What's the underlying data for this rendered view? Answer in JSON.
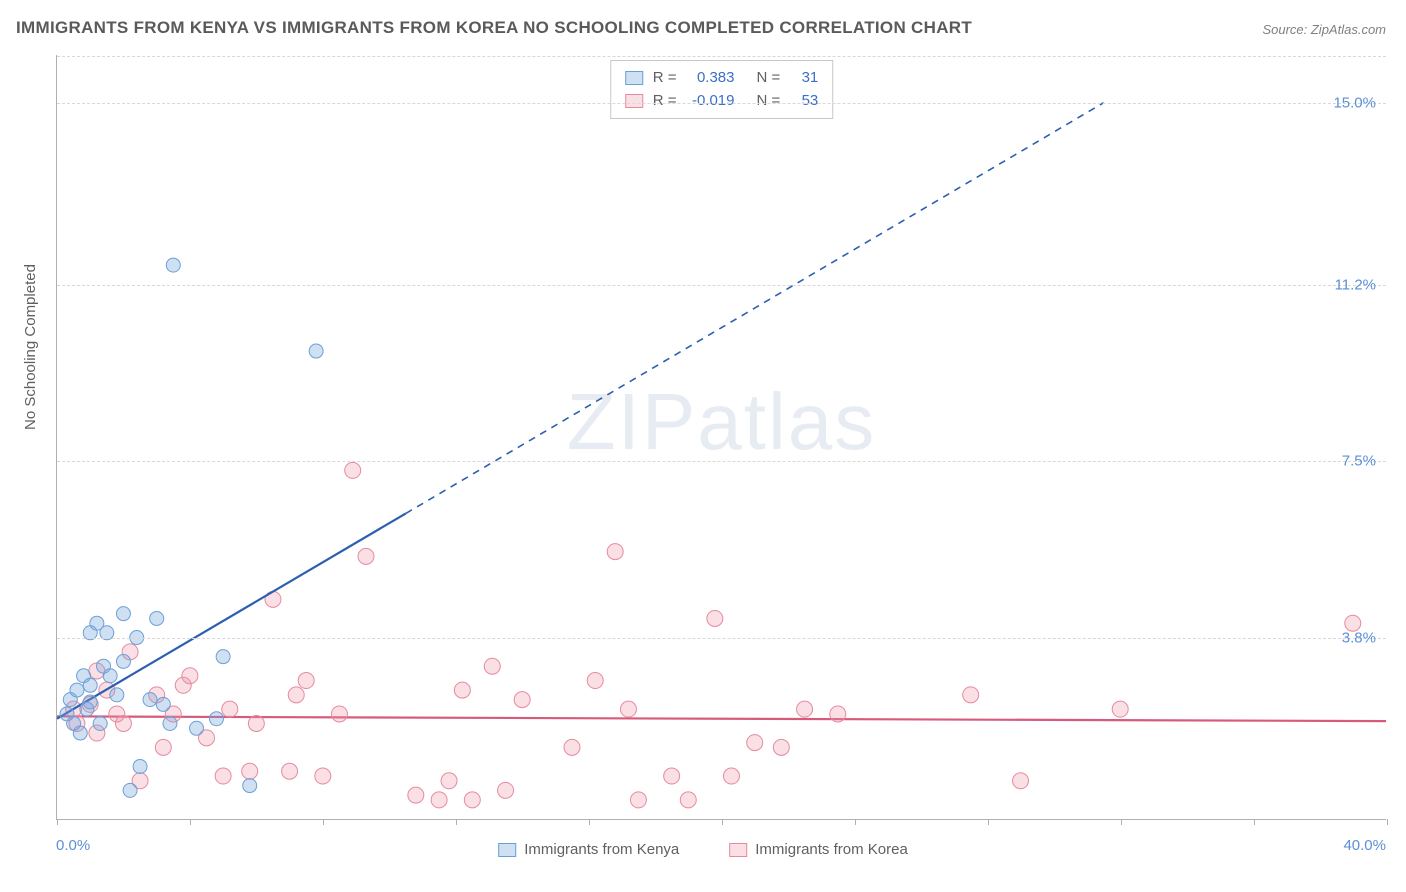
{
  "title": "IMMIGRANTS FROM KENYA VS IMMIGRANTS FROM KOREA NO SCHOOLING COMPLETED CORRELATION CHART",
  "source": "Source: ZipAtlas.com",
  "watermark": "ZIPatlas",
  "ylabel": "No Schooling Completed",
  "xlim": [
    0,
    40
  ],
  "ylim": [
    0,
    16
  ],
  "x_min_label": "0.0%",
  "x_max_label": "40.0%",
  "y_ticks": [
    {
      "v": 3.8,
      "label": "3.8%"
    },
    {
      "v": 7.5,
      "label": "7.5%"
    },
    {
      "v": 11.2,
      "label": "11.2%"
    },
    {
      "v": 15.0,
      "label": "15.0%"
    }
  ],
  "x_tick_step": 4,
  "grid_color": "#d8d8d8",
  "axis_color": "#b0b0b0",
  "series": [
    {
      "name": "Immigrants from Kenya",
      "fill": "rgba(120,165,220,0.35)",
      "stroke": "#6a9fd8",
      "line_color": "#2d5fb0",
      "r_value": "0.383",
      "n_value": "31",
      "trend": {
        "x1": 0,
        "y1": 2.1,
        "x2": 10.5,
        "y2": 6.4,
        "ext_x2": 31.5,
        "ext_y2": 15.0
      },
      "points": [
        [
          0.3,
          2.2
        ],
        [
          0.4,
          2.5
        ],
        [
          0.5,
          2.0
        ],
        [
          0.6,
          2.7
        ],
        [
          0.7,
          1.8
        ],
        [
          0.8,
          3.0
        ],
        [
          0.9,
          2.3
        ],
        [
          1.0,
          2.8
        ],
        [
          1.0,
          3.9
        ],
        [
          1.2,
          4.1
        ],
        [
          1.3,
          2.0
        ],
        [
          1.4,
          3.2
        ],
        [
          1.5,
          3.9
        ],
        [
          1.6,
          3.0
        ],
        [
          1.8,
          2.6
        ],
        [
          2.0,
          3.3
        ],
        [
          2.0,
          4.3
        ],
        [
          2.2,
          0.6
        ],
        [
          2.4,
          3.8
        ],
        [
          2.5,
          1.1
        ],
        [
          2.8,
          2.5
        ],
        [
          3.0,
          4.2
        ],
        [
          3.2,
          2.4
        ],
        [
          3.4,
          2.0
        ],
        [
          3.5,
          11.6
        ],
        [
          4.2,
          1.9
        ],
        [
          4.8,
          2.1
        ],
        [
          5.0,
          3.4
        ],
        [
          5.8,
          0.7
        ],
        [
          7.8,
          9.8
        ],
        [
          1.0,
          2.45
        ]
      ],
      "marker_r": 7
    },
    {
      "name": "Immigrants from Korea",
      "fill": "rgba(240,150,170,0.30)",
      "stroke": "#e68aa0",
      "line_color": "#d85a7a",
      "r_value": "-0.019",
      "n_value": "53",
      "trend": {
        "x1": 0,
        "y1": 2.15,
        "x2": 40,
        "y2": 2.05
      },
      "points": [
        [
          0.5,
          2.3
        ],
        [
          0.6,
          2.0
        ],
        [
          1.0,
          2.4
        ],
        [
          1.2,
          1.8
        ],
        [
          1.5,
          2.7
        ],
        [
          1.8,
          2.2
        ],
        [
          2.0,
          2.0
        ],
        [
          2.2,
          3.5
        ],
        [
          2.5,
          0.8
        ],
        [
          3.0,
          2.6
        ],
        [
          3.2,
          1.5
        ],
        [
          3.5,
          2.2
        ],
        [
          3.8,
          2.8
        ],
        [
          4.0,
          3.0
        ],
        [
          4.5,
          1.7
        ],
        [
          5.0,
          0.9
        ],
        [
          5.2,
          2.3
        ],
        [
          5.8,
          1.0
        ],
        [
          6.0,
          2.0
        ],
        [
          6.5,
          4.6
        ],
        [
          7.0,
          1.0
        ],
        [
          7.2,
          2.6
        ],
        [
          7.5,
          2.9
        ],
        [
          8.0,
          0.9
        ],
        [
          8.5,
          2.2
        ],
        [
          8.9,
          7.3
        ],
        [
          9.3,
          5.5
        ],
        [
          10.8,
          0.5
        ],
        [
          11.5,
          0.4
        ],
        [
          11.8,
          0.8
        ],
        [
          12.2,
          2.7
        ],
        [
          12.5,
          0.4
        ],
        [
          13.1,
          3.2
        ],
        [
          13.5,
          0.6
        ],
        [
          14.0,
          2.5
        ],
        [
          15.5,
          1.5
        ],
        [
          16.2,
          2.9
        ],
        [
          16.8,
          5.6
        ],
        [
          17.2,
          2.3
        ],
        [
          17.5,
          0.4
        ],
        [
          18.5,
          0.9
        ],
        [
          19.0,
          0.4
        ],
        [
          19.8,
          4.2
        ],
        [
          20.3,
          0.9
        ],
        [
          21.0,
          1.6
        ],
        [
          21.8,
          1.5
        ],
        [
          22.5,
          2.3
        ],
        [
          23.5,
          2.2
        ],
        [
          27.5,
          2.6
        ],
        [
          29.0,
          0.8
        ],
        [
          32.0,
          2.3
        ],
        [
          39.0,
          4.1
        ],
        [
          1.2,
          3.1
        ]
      ],
      "marker_r": 8
    }
  ],
  "stats_box": {
    "r_label": "R  =",
    "n_label": "N  ="
  },
  "colors": {
    "tick_label": "#5b8fd6",
    "text": "#606060",
    "background": "#ffffff"
  },
  "font_sizes": {
    "title": 17,
    "axis_label": 15,
    "tick": 15,
    "legend": 15,
    "stats": 15,
    "watermark": 80
  }
}
